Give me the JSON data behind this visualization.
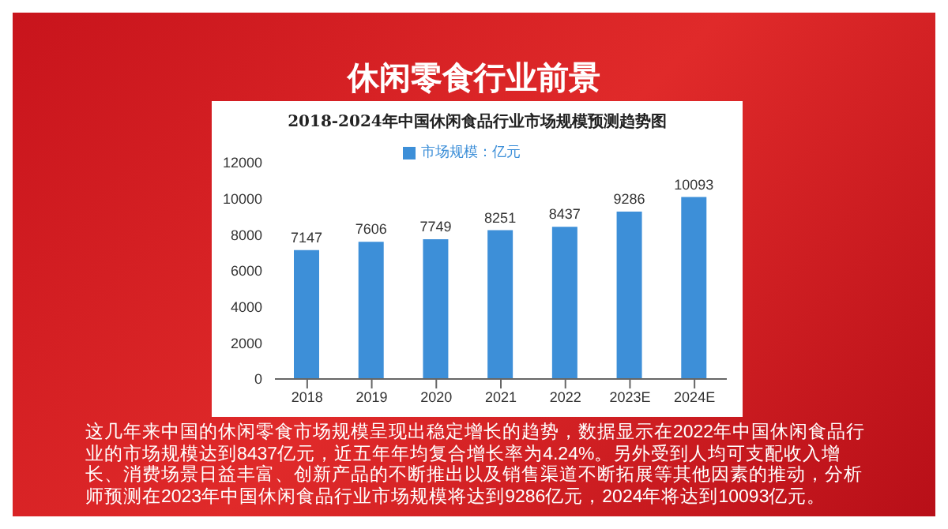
{
  "chart_data": {
    "type": "bar",
    "title": "休闲零食行业前景",
    "subtitle": "2018-2024年中国休闲食品行业市场规模预测趋势图",
    "categories": [
      "2018",
      "2019",
      "2020",
      "2021",
      "2022",
      "2023E",
      "2024E"
    ],
    "series": [
      {
        "name": "市场规模：亿元",
        "color": "#3d8fd8",
        "values": [
          7147,
          7606,
          7749,
          8251,
          8437,
          9286,
          10093
        ]
      }
    ],
    "ylim": [
      0,
      12000
    ],
    "yticks": [
      0,
      2000,
      4000,
      6000,
      8000,
      10000,
      12000
    ],
    "grid": false,
    "legend": "top",
    "data_labels": true,
    "annotations": [
      "这几年来中国的休闲零食市场规模呈现出稳定增长的趋势，数据显示在2022年中国休闲食品行业的市场规模达到8437亿元，近五年年均复合增长率为4.24%。另外受到人均可支配收入增长、消费场景日益丰富、创新产品的不断推出以及销售渠道不断拓展等其他因素的推动，分析师预测在2023年中国休闲食品行业市场规模将达到9286亿元，2024年将达到10093亿元。"
    ]
  }
}
